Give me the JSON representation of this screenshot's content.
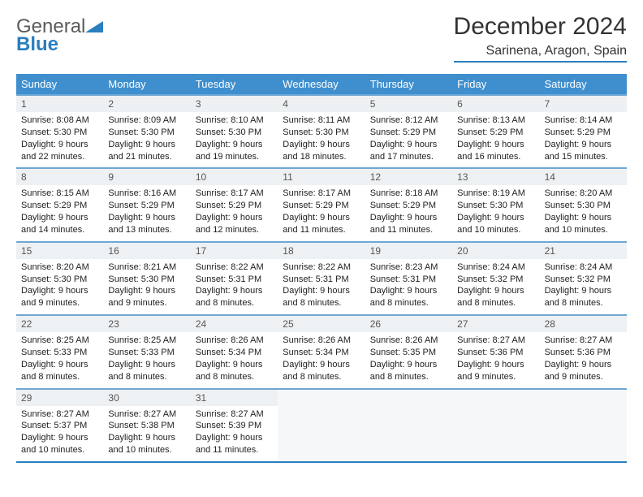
{
  "logo": {
    "line1": "General",
    "line2": "Blue"
  },
  "title": "December 2024",
  "subtitle": "Sarinena, Aragon, Spain",
  "colors": {
    "header_bg": "#3f8fce",
    "border": "#2a7fbf",
    "cell_border": "#6ea7d4",
    "num_bg": "#eef1f3",
    "logo_gray": "#5b5b5b",
    "logo_blue": "#2a7fbf"
  },
  "weekdays": [
    "Sunday",
    "Monday",
    "Tuesday",
    "Wednesday",
    "Thursday",
    "Friday",
    "Saturday"
  ],
  "days": [
    {
      "n": "1",
      "sunrise": "8:08 AM",
      "sunset": "5:30 PM",
      "daylight": "9 hours and 22 minutes."
    },
    {
      "n": "2",
      "sunrise": "8:09 AM",
      "sunset": "5:30 PM",
      "daylight": "9 hours and 21 minutes."
    },
    {
      "n": "3",
      "sunrise": "8:10 AM",
      "sunset": "5:30 PM",
      "daylight": "9 hours and 19 minutes."
    },
    {
      "n": "4",
      "sunrise": "8:11 AM",
      "sunset": "5:30 PM",
      "daylight": "9 hours and 18 minutes."
    },
    {
      "n": "5",
      "sunrise": "8:12 AM",
      "sunset": "5:29 PM",
      "daylight": "9 hours and 17 minutes."
    },
    {
      "n": "6",
      "sunrise": "8:13 AM",
      "sunset": "5:29 PM",
      "daylight": "9 hours and 16 minutes."
    },
    {
      "n": "7",
      "sunrise": "8:14 AM",
      "sunset": "5:29 PM",
      "daylight": "9 hours and 15 minutes."
    },
    {
      "n": "8",
      "sunrise": "8:15 AM",
      "sunset": "5:29 PM",
      "daylight": "9 hours and 14 minutes."
    },
    {
      "n": "9",
      "sunrise": "8:16 AM",
      "sunset": "5:29 PM",
      "daylight": "9 hours and 13 minutes."
    },
    {
      "n": "10",
      "sunrise": "8:17 AM",
      "sunset": "5:29 PM",
      "daylight": "9 hours and 12 minutes."
    },
    {
      "n": "11",
      "sunrise": "8:17 AM",
      "sunset": "5:29 PM",
      "daylight": "9 hours and 11 minutes."
    },
    {
      "n": "12",
      "sunrise": "8:18 AM",
      "sunset": "5:29 PM",
      "daylight": "9 hours and 11 minutes."
    },
    {
      "n": "13",
      "sunrise": "8:19 AM",
      "sunset": "5:30 PM",
      "daylight": "9 hours and 10 minutes."
    },
    {
      "n": "14",
      "sunrise": "8:20 AM",
      "sunset": "5:30 PM",
      "daylight": "9 hours and 10 minutes."
    },
    {
      "n": "15",
      "sunrise": "8:20 AM",
      "sunset": "5:30 PM",
      "daylight": "9 hours and 9 minutes."
    },
    {
      "n": "16",
      "sunrise": "8:21 AM",
      "sunset": "5:30 PM",
      "daylight": "9 hours and 9 minutes."
    },
    {
      "n": "17",
      "sunrise": "8:22 AM",
      "sunset": "5:31 PM",
      "daylight": "9 hours and 8 minutes."
    },
    {
      "n": "18",
      "sunrise": "8:22 AM",
      "sunset": "5:31 PM",
      "daylight": "9 hours and 8 minutes."
    },
    {
      "n": "19",
      "sunrise": "8:23 AM",
      "sunset": "5:31 PM",
      "daylight": "9 hours and 8 minutes."
    },
    {
      "n": "20",
      "sunrise": "8:24 AM",
      "sunset": "5:32 PM",
      "daylight": "9 hours and 8 minutes."
    },
    {
      "n": "21",
      "sunrise": "8:24 AM",
      "sunset": "5:32 PM",
      "daylight": "9 hours and 8 minutes."
    },
    {
      "n": "22",
      "sunrise": "8:25 AM",
      "sunset": "5:33 PM",
      "daylight": "9 hours and 8 minutes."
    },
    {
      "n": "23",
      "sunrise": "8:25 AM",
      "sunset": "5:33 PM",
      "daylight": "9 hours and 8 minutes."
    },
    {
      "n": "24",
      "sunrise": "8:26 AM",
      "sunset": "5:34 PM",
      "daylight": "9 hours and 8 minutes."
    },
    {
      "n": "25",
      "sunrise": "8:26 AM",
      "sunset": "5:34 PM",
      "daylight": "9 hours and 8 minutes."
    },
    {
      "n": "26",
      "sunrise": "8:26 AM",
      "sunset": "5:35 PM",
      "daylight": "9 hours and 8 minutes."
    },
    {
      "n": "27",
      "sunrise": "8:27 AM",
      "sunset": "5:36 PM",
      "daylight": "9 hours and 9 minutes."
    },
    {
      "n": "28",
      "sunrise": "8:27 AM",
      "sunset": "5:36 PM",
      "daylight": "9 hours and 9 minutes."
    },
    {
      "n": "29",
      "sunrise": "8:27 AM",
      "sunset": "5:37 PM",
      "daylight": "9 hours and 10 minutes."
    },
    {
      "n": "30",
      "sunrise": "8:27 AM",
      "sunset": "5:38 PM",
      "daylight": "9 hours and 10 minutes."
    },
    {
      "n": "31",
      "sunrise": "8:27 AM",
      "sunset": "5:39 PM",
      "daylight": "9 hours and 11 minutes."
    }
  ],
  "labels": {
    "sunrise": "Sunrise:",
    "sunset": "Sunset:",
    "daylight": "Daylight:"
  },
  "trailing_empty": 4
}
